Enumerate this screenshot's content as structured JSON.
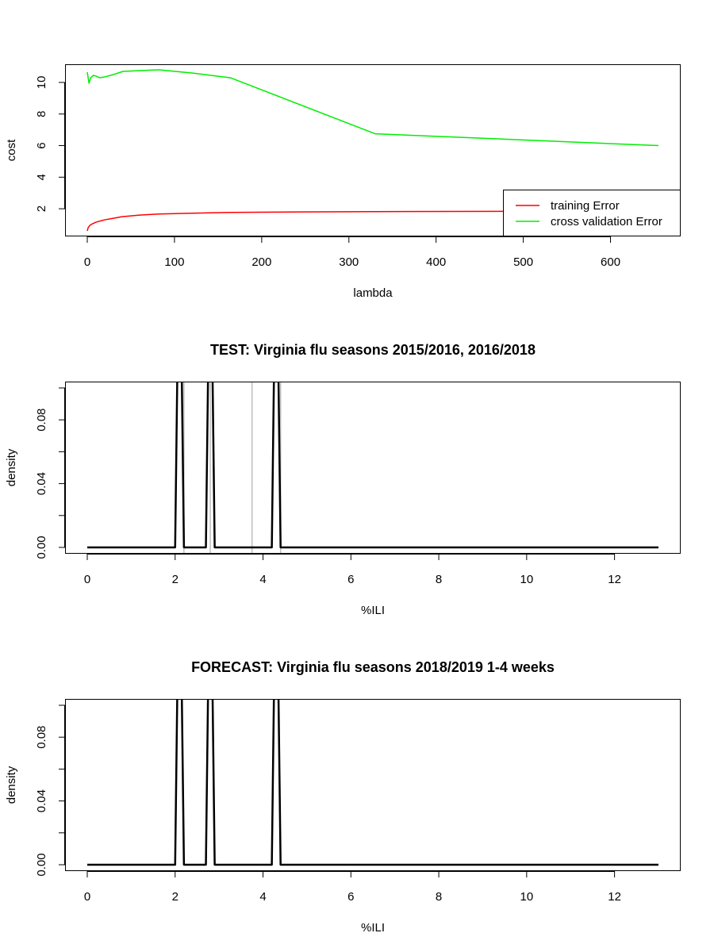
{
  "chart_data": [
    {
      "type": "line",
      "title": "",
      "xlabel": "lambda",
      "ylabel": "cost",
      "xlim": [
        0,
        655
      ],
      "ylim": [
        0.6,
        10.8
      ],
      "xticks": [
        0,
        100,
        200,
        300,
        400,
        500,
        600
      ],
      "yticks": [
        2,
        4,
        6,
        8,
        10
      ],
      "legend": {
        "position": "bottom-right"
      },
      "series": [
        {
          "name": "training Error",
          "color": "#ff0000",
          "points": [
            [
              0,
              0.6
            ],
            [
              1,
              0.8
            ],
            [
              3,
              0.95
            ],
            [
              6,
              1.05
            ],
            [
              10,
              1.15
            ],
            [
              20,
              1.3
            ],
            [
              30,
              1.4
            ],
            [
              40,
              1.5
            ],
            [
              60,
              1.6
            ],
            [
              82,
              1.67
            ],
            [
              120,
              1.72
            ],
            [
              164,
              1.77
            ],
            [
              250,
              1.8
            ],
            [
              330,
              1.82
            ],
            [
              500,
              1.84
            ],
            [
              655,
              1.85
            ]
          ]
        },
        {
          "name": "cross validation Error",
          "color": "#00ee00",
          "points": [
            [
              0,
              10.65
            ],
            [
              2,
              9.95
            ],
            [
              4,
              10.3
            ],
            [
              7,
              10.45
            ],
            [
              10,
              10.4
            ],
            [
              14,
              10.3
            ],
            [
              20,
              10.35
            ],
            [
              30,
              10.5
            ],
            [
              41,
              10.7
            ],
            [
              60,
              10.75
            ],
            [
              82,
              10.8
            ],
            [
              120,
              10.6
            ],
            [
              164,
              10.3
            ],
            [
              330,
              6.75
            ],
            [
              655,
              6.0
            ]
          ]
        }
      ]
    },
    {
      "type": "line",
      "title": "TEST: Virginia  flu seasons 2015/2016, 2016/2018",
      "xlabel": "%ILI",
      "ylabel": "density",
      "xlim": [
        0,
        13
      ],
      "ylim": [
        0,
        0.1
      ],
      "xticks": [
        0,
        2,
        4,
        6,
        8,
        10,
        12
      ],
      "yticks": [
        0.0,
        0.04,
        0.08
      ],
      "ytick_labels": [
        "0.00",
        "0.04",
        "0.08"
      ],
      "vertical_lines": {
        "color": "#bebebe",
        "x": [
          2.2,
          2.8,
          3.75,
          4.4
        ]
      },
      "series": [
        {
          "color": "#000000",
          "points": [
            [
              0,
              0
            ],
            [
              2.0,
              0
            ],
            [
              2.05,
              0.11
            ],
            [
              2.15,
              0.11
            ],
            [
              2.2,
              0
            ],
            [
              2.7,
              0
            ],
            [
              2.75,
              0.11
            ],
            [
              2.85,
              0.11
            ],
            [
              2.9,
              0
            ],
            [
              4.2,
              0
            ],
            [
              4.25,
              0.11
            ],
            [
              4.35,
              0.11
            ],
            [
              4.4,
              0
            ],
            [
              13,
              0
            ]
          ]
        }
      ]
    },
    {
      "type": "line",
      "title": "FORECAST: Virginia flu seasons 2018/2019 1-4 weeks",
      "xlabel": "%ILI",
      "ylabel": "density",
      "xlim": [
        0,
        13
      ],
      "ylim": [
        0,
        0.1
      ],
      "xticks": [
        0,
        2,
        4,
        6,
        8,
        10,
        12
      ],
      "yticks": [
        0.0,
        0.04,
        0.08
      ],
      "ytick_labels": [
        "0.00",
        "0.04",
        "0.08"
      ],
      "series": [
        {
          "color": "#000000",
          "points": [
            [
              0,
              0
            ],
            [
              2.0,
              0
            ],
            [
              2.05,
              0.11
            ],
            [
              2.15,
              0.11
            ],
            [
              2.2,
              0
            ],
            [
              2.7,
              0
            ],
            [
              2.75,
              0.11
            ],
            [
              2.85,
              0.11
            ],
            [
              2.9,
              0
            ],
            [
              4.2,
              0
            ],
            [
              4.25,
              0.11
            ],
            [
              4.35,
              0.11
            ],
            [
              4.4,
              0
            ],
            [
              13,
              0
            ]
          ]
        }
      ]
    }
  ]
}
